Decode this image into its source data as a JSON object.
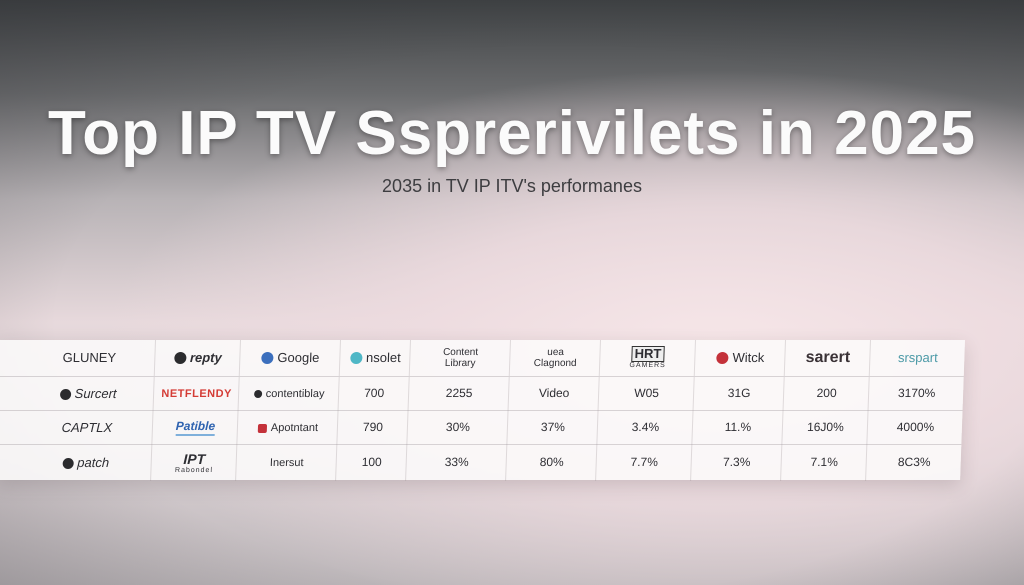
{
  "title": "Top IP TV Ssprerivilets in 2025",
  "subtitle": "2035 in TV IP ITV's performanes",
  "table": {
    "header": [
      "GLUNEY",
      "repty",
      "Google",
      "nsolet",
      "Content Library",
      "uea Clagnond",
      "HRT",
      "Witck",
      "sarert",
      "srspart"
    ],
    "hbo_sub": "GAMERS",
    "rows": [
      [
        "Surcert",
        "NETFLENDY",
        "contentiblay",
        "700",
        "2255",
        "Video",
        "W05",
        "31G",
        "200",
        "3170%"
      ],
      [
        "CAPTLX",
        "Patible",
        "Apotntant",
        "790",
        "30%",
        "37%",
        "3.4%",
        "11.%",
        "16J0%",
        "4000%"
      ],
      [
        "patch",
        "IPT",
        "Inersut",
        "100",
        "33%",
        "80%",
        "7.7%",
        "7.3%",
        "7.1%",
        "8C3%"
      ]
    ],
    "ipt_sub": "Rabondel"
  }
}
